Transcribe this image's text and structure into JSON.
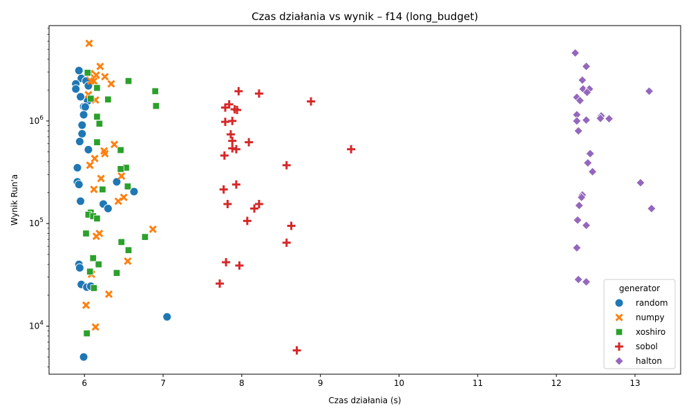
{
  "chart_data": {
    "type": "scatter",
    "title": "Czas działania vs wynik – f14 (long_budget)",
    "xlabel": "Czas działania (s)",
    "ylabel": "Wynik Run'a",
    "xlim": [
      5.55,
      13.58
    ],
    "ylim": [
      3400,
      8500000
    ],
    "y_scale": "log",
    "x_ticks": [
      6,
      7,
      8,
      9,
      10,
      11,
      12,
      13
    ],
    "y_ticks": [
      {
        "value": 10000,
        "base": "10",
        "exp": "4"
      },
      {
        "value": 100000,
        "base": "10",
        "exp": "5"
      },
      {
        "value": 1000000,
        "base": "10",
        "exp": "6"
      }
    ],
    "grid": false,
    "legend": {
      "title": "generator",
      "placement": "lower-right"
    },
    "series": [
      {
        "name": "random",
        "color": "#1f77b4",
        "marker": "circle",
        "points": [
          [
            5.93,
            3100000
          ],
          [
            5.96,
            2600000
          ],
          [
            6.02,
            2450000
          ],
          [
            5.89,
            2300000
          ],
          [
            6.05,
            2200000
          ],
          [
            5.89,
            2050000
          ],
          [
            5.95,
            1720000
          ],
          [
            6.04,
            1560000
          ],
          [
            5.99,
            1380000
          ],
          [
            6.01,
            1370000
          ],
          [
            5.99,
            1150000
          ],
          [
            5.97,
            910000
          ],
          [
            5.97,
            750000
          ],
          [
            5.94,
            630000
          ],
          [
            6.05,
            525000
          ],
          [
            5.91,
            350000
          ],
          [
            5.91,
            255000
          ],
          [
            5.93,
            240000
          ],
          [
            6.41,
            255000
          ],
          [
            6.63,
            205000
          ],
          [
            5.95,
            165000
          ],
          [
            6.24,
            155000
          ],
          [
            6.3,
            140000
          ],
          [
            5.93,
            40000
          ],
          [
            5.94,
            37000
          ],
          [
            5.96,
            25500
          ],
          [
            6.03,
            24000
          ],
          [
            6.08,
            24500
          ],
          [
            7.05,
            12300
          ],
          [
            5.99,
            5000
          ]
        ]
      },
      {
        "name": "numpy",
        "color": "#ff7f0e",
        "marker": "x",
        "points": [
          [
            6.06,
            5700000
          ],
          [
            6.2,
            3400000
          ],
          [
            6.07,
            2900000
          ],
          [
            6.15,
            2800000
          ],
          [
            6.26,
            2700000
          ],
          [
            6.08,
            2450000
          ],
          [
            6.12,
            2450000
          ],
          [
            6.34,
            2300000
          ],
          [
            6.05,
            1800000
          ],
          [
            6.14,
            1600000
          ],
          [
            6.38,
            590000
          ],
          [
            6.25,
            510000
          ],
          [
            6.26,
            480000
          ],
          [
            6.13,
            430000
          ],
          [
            6.07,
            370000
          ],
          [
            6.47,
            290000
          ],
          [
            6.21,
            275000
          ],
          [
            6.12,
            215000
          ],
          [
            6.5,
            180000
          ],
          [
            6.43,
            165000
          ],
          [
            6.87,
            88000
          ],
          [
            6.19,
            80000
          ],
          [
            6.15,
            75000
          ],
          [
            6.55,
            43000
          ],
          [
            6.09,
            32000
          ],
          [
            6.31,
            20500
          ],
          [
            6.02,
            16000
          ],
          [
            6.14,
            9800
          ]
        ]
      },
      {
        "name": "xoshiro",
        "color": "#2ca02c",
        "marker": "square",
        "points": [
          [
            6.04,
            2950000
          ],
          [
            6.56,
            2450000
          ],
          [
            6.16,
            2100000
          ],
          [
            6.9,
            1950000
          ],
          [
            6.08,
            1650000
          ],
          [
            6.3,
            1620000
          ],
          [
            6.91,
            1400000
          ],
          [
            6.16,
            1100000
          ],
          [
            6.19,
            940000
          ],
          [
            6.16,
            620000
          ],
          [
            6.46,
            520000
          ],
          [
            6.53,
            350000
          ],
          [
            6.46,
            340000
          ],
          [
            6.55,
            230000
          ],
          [
            6.23,
            215000
          ],
          [
            6.08,
            128000
          ],
          [
            6.05,
            122000
          ],
          [
            6.11,
            118000
          ],
          [
            6.16,
            112000
          ],
          [
            6.02,
            80000
          ],
          [
            6.77,
            74000
          ],
          [
            6.47,
            66000
          ],
          [
            6.56,
            55000
          ],
          [
            6.11,
            46000
          ],
          [
            6.18,
            40000
          ],
          [
            6.07,
            34000
          ],
          [
            6.41,
            33000
          ],
          [
            6.12,
            23500
          ],
          [
            6.03,
            8500
          ]
        ]
      },
      {
        "name": "sobol",
        "color": "#d62728",
        "marker": "plus",
        "points": [
          [
            7.96,
            1950000
          ],
          [
            8.22,
            1850000
          ],
          [
            8.88,
            1550000
          ],
          [
            7.84,
            1450000
          ],
          [
            7.79,
            1350000
          ],
          [
            7.91,
            1300000
          ],
          [
            7.94,
            1280000
          ],
          [
            7.88,
            1000000
          ],
          [
            7.79,
            980000
          ],
          [
            7.86,
            740000
          ],
          [
            7.88,
            640000
          ],
          [
            8.09,
            620000
          ],
          [
            7.88,
            540000
          ],
          [
            7.93,
            530000
          ],
          [
            9.39,
            530000
          ],
          [
            7.78,
            460000
          ],
          [
            8.57,
            370000
          ],
          [
            7.93,
            240000
          ],
          [
            7.77,
            215000
          ],
          [
            7.82,
            155000
          ],
          [
            8.22,
            155000
          ],
          [
            8.16,
            140000
          ],
          [
            8.07,
            106000
          ],
          [
            8.63,
            95000
          ],
          [
            8.57,
            65000
          ],
          [
            7.8,
            42000
          ],
          [
            7.97,
            39000
          ],
          [
            7.72,
            26000
          ],
          [
            8.7,
            5800
          ]
        ]
      },
      {
        "name": "halton",
        "color": "#9467bd",
        "marker": "diamond",
        "points": [
          [
            12.24,
            4600000
          ],
          [
            12.38,
            3400000
          ],
          [
            12.33,
            2500000
          ],
          [
            12.34,
            2050000
          ],
          [
            12.42,
            2050000
          ],
          [
            12.39,
            1900000
          ],
          [
            13.18,
            1950000
          ],
          [
            12.26,
            1700000
          ],
          [
            12.3,
            1580000
          ],
          [
            12.26,
            1150000
          ],
          [
            12.57,
            1120000
          ],
          [
            12.56,
            1060000
          ],
          [
            12.67,
            1050000
          ],
          [
            12.26,
            1000000
          ],
          [
            12.38,
            1020000
          ],
          [
            12.28,
            800000
          ],
          [
            12.43,
            480000
          ],
          [
            12.4,
            390000
          ],
          [
            12.46,
            320000
          ],
          [
            13.07,
            250000
          ],
          [
            12.33,
            190000
          ],
          [
            12.32,
            180000
          ],
          [
            12.29,
            150000
          ],
          [
            13.21,
            140000
          ],
          [
            12.27,
            108000
          ],
          [
            12.38,
            96000
          ],
          [
            12.26,
            58000
          ],
          [
            12.28,
            28500
          ],
          [
            12.38,
            27000
          ]
        ]
      }
    ]
  }
}
